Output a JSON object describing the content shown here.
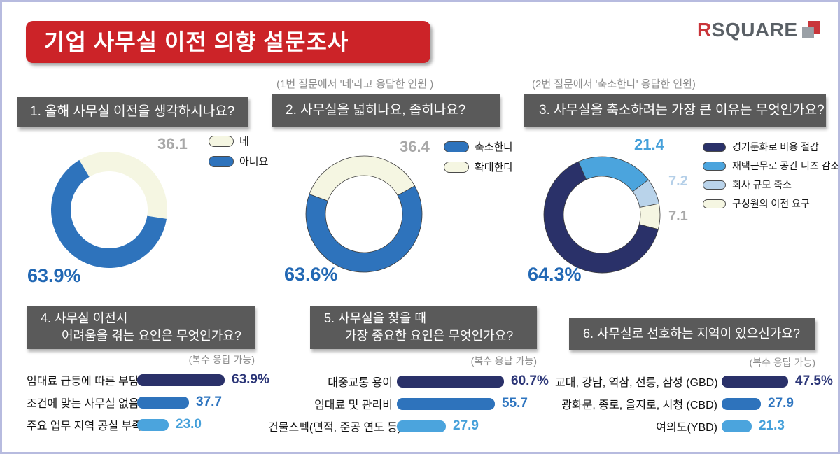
{
  "page": {
    "title": "기업 사무실 이전 의향 설문조사",
    "logo_text_r": "R",
    "logo_text_rest": "SQUARE"
  },
  "palette": {
    "navy": "#2a3169",
    "blue": "#2e73bc",
    "sky": "#4ba4dd",
    "pale": "#b9d3ea",
    "cream": "#f5f6e2",
    "red": "#cc2328",
    "header_gray": "#5a5a5a",
    "value_blue": "#2268b4",
    "gray_text": "#a8a8a8",
    "sky_text": "#45a0da",
    "pale_text": "#b4cfe8",
    "navy_text": "#2b3577",
    "blue_text": "#2d74bf",
    "note_gray": "#8d8d8d",
    "logo_red": "#c9353a",
    "logo_gray": "#5a6066",
    "icon_gray": "#9aa0a6"
  },
  "chart_data": [
    {
      "id": "q1",
      "type": "donut",
      "title": "1. 올해 사무실 이전을 생각하시나요?",
      "note": "",
      "start_angle": -31,
      "outlined": false,
      "slices": [
        {
          "label": "네",
          "value": 36.1,
          "display": "36.1",
          "color": "cream"
        },
        {
          "label": "아니요",
          "value": 63.9,
          "display": "63.9%",
          "color": "blue"
        }
      ],
      "legend": [
        {
          "label": "네",
          "color": "cream"
        },
        {
          "label": "아니요",
          "color": "blue"
        }
      ]
    },
    {
      "id": "q2",
      "type": "donut",
      "title": "2. 사무실을 넓히나요, 좁히나요?",
      "note": "(1번 질문에서 '네'라고 응답한 인원 )",
      "start_angle": -70,
      "outlined": true,
      "slices": [
        {
          "label": "확대한다",
          "value": 36.4,
          "display": "36.4",
          "color": "cream"
        },
        {
          "label": "축소한다",
          "value": 63.6,
          "display": "63.6%",
          "color": "blue"
        }
      ],
      "legend": [
        {
          "label": "축소한다",
          "color": "blue"
        },
        {
          "label": "확대한다",
          "color": "cream"
        }
      ]
    },
    {
      "id": "q3",
      "type": "donut",
      "title": "3. 사무실을 축소하려는 가장 큰 이유는 무엇인가요?",
      "note": "(2번 질문에서 '축소한다' 응답한 인원)",
      "start_angle": -24,
      "outlined": true,
      "slices": [
        {
          "label": "재택근무로 공간 니즈 감소",
          "value": 21.4,
          "display": "21.4",
          "color": "sky"
        },
        {
          "label": "회사 규모 축소",
          "value": 7.2,
          "display": "7.2",
          "color": "pale"
        },
        {
          "label": "구성원의 이전 요구",
          "value": 7.1,
          "display": "7.1",
          "color": "cream"
        },
        {
          "label": "경기둔화로 비용 절감",
          "value": 64.3,
          "display": "64.3%",
          "color": "navy"
        }
      ],
      "legend": [
        {
          "label": "경기둔화로 비용 절감",
          "color": "navy"
        },
        {
          "label": "재택근무로 공간 니즈 감소",
          "color": "sky"
        },
        {
          "label": "회사 규모 축소",
          "color": "pale"
        },
        {
          "label": "구성원의 이전 요구",
          "color": "cream"
        }
      ]
    },
    {
      "id": "q4",
      "type": "bar",
      "title_lines": [
        "4. 사무실 이전시",
        "어려움을 겪는 요인은 무엇인가요?"
      ],
      "note": "(복수 응답 가능)",
      "bar_scale": 1.96,
      "rows": [
        {
          "label": "임대료 급등에 따른 부담",
          "value": 63.9,
          "display": "63.9%",
          "color": "navy",
          "value_color": "navy_text"
        },
        {
          "label": "조건에 맞는 사무실 없음",
          "value": 37.7,
          "display": "37.7",
          "color": "blue",
          "value_color": "blue_text"
        },
        {
          "label": "주요 업무 지역 공실 부족",
          "value": 23.0,
          "display": "23.0",
          "color": "sky",
          "value_color": "sky_text"
        }
      ]
    },
    {
      "id": "q5",
      "type": "bar",
      "title_lines": [
        "5. 사무실을 찾을 때",
        "가장 중요한 요인은 무엇인가요?"
      ],
      "note": "(복수 응답 가능)",
      "bar_scale": 2.52,
      "rows": [
        {
          "label": "대중교통 용이",
          "value": 60.7,
          "display": "60.7%",
          "color": "navy",
          "value_color": "navy_text"
        },
        {
          "label": "임대료 및 관리비",
          "value": 55.7,
          "display": "55.7",
          "color": "blue",
          "value_color": "blue_text"
        },
        {
          "label": "건물스펙(면적, 준공 연도 등)",
          "value": 27.9,
          "display": "27.9",
          "color": "sky",
          "value_color": "sky_text"
        }
      ]
    },
    {
      "id": "q6",
      "type": "bar",
      "title": "6. 사무실로 선호하는 지역이 있으신가요?",
      "note": "(복수 응답 가능)",
      "bar_scale": 2.0,
      "rows": [
        {
          "label": "교대, 강남, 역삼, 선릉, 삼성 (GBD)",
          "value": 47.5,
          "display": "47.5%",
          "color": "navy",
          "value_color": "navy_text"
        },
        {
          "label": "광화문, 종로, 을지로, 시청 (CBD)",
          "value": 27.9,
          "display": "27.9",
          "color": "blue",
          "value_color": "blue_text"
        },
        {
          "label": "여의도(YBD)",
          "value": 21.3,
          "display": "21.3",
          "color": "sky",
          "value_color": "sky_text"
        }
      ]
    }
  ]
}
